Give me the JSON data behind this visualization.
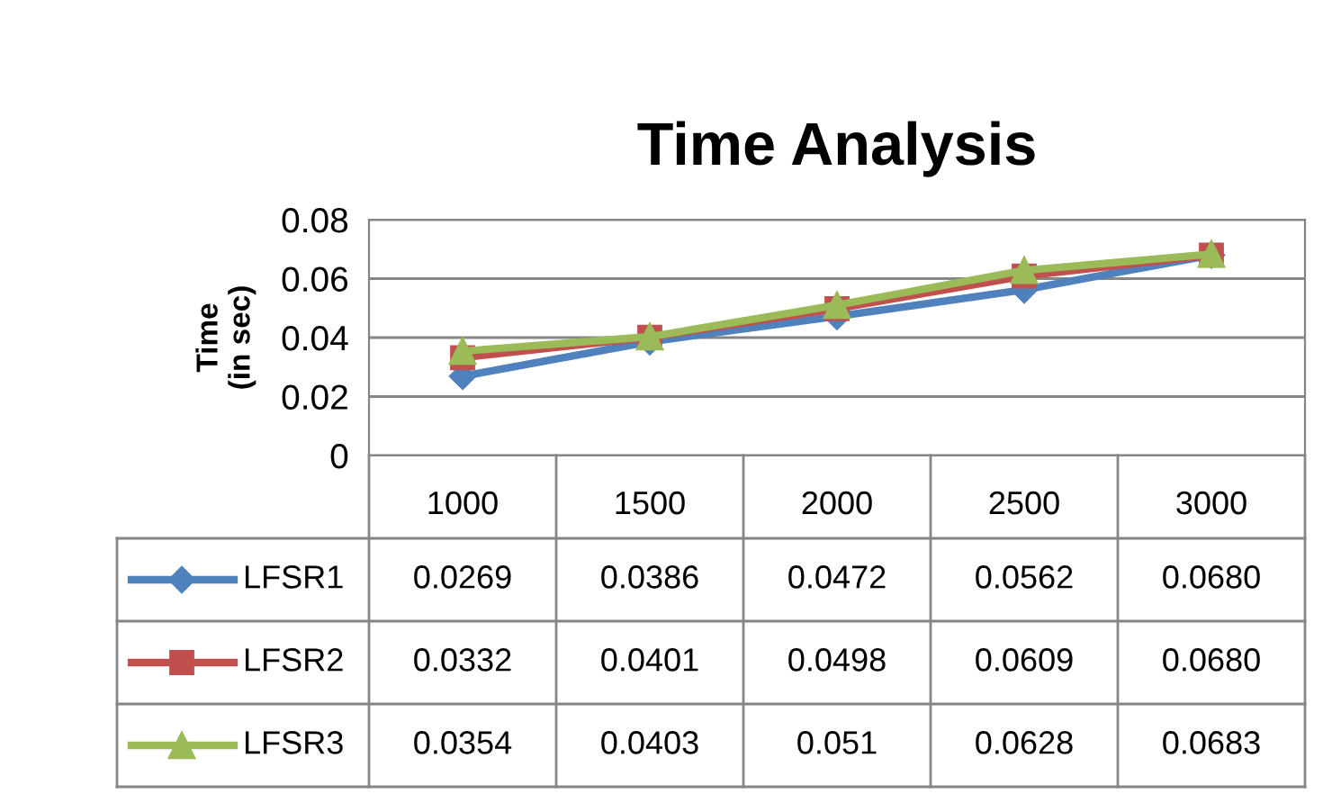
{
  "chart_data": {
    "type": "line",
    "title": "Time Analysis",
    "ylabel": "Time\n(in sec)",
    "categories": [
      "1000",
      "1500",
      "2000",
      "2500",
      "3000"
    ],
    "series": [
      {
        "name": "LFSR1",
        "color": "#4f81bd",
        "marker": "diamond",
        "values": [
          0.0269,
          0.0386,
          0.0472,
          0.0562,
          0.068
        ],
        "value_labels": [
          "0.0269",
          "0.0386",
          "0.0472",
          "0.0562",
          "0.0680"
        ]
      },
      {
        "name": "LFSR2",
        "color": "#c0504d",
        "marker": "square",
        "values": [
          0.0332,
          0.0401,
          0.0498,
          0.0609,
          0.068
        ],
        "value_labels": [
          "0.0332",
          "0.0401",
          "0.0498",
          "0.0609",
          "0.0680"
        ]
      },
      {
        "name": "LFSR3",
        "color": "#9bbb59",
        "marker": "triangle",
        "values": [
          0.0354,
          0.0403,
          0.051,
          0.0628,
          0.0683
        ],
        "value_labels": [
          "0.0354",
          "0.0403",
          "0.051",
          "0.0628",
          "0.0683"
        ]
      }
    ],
    "ylim": [
      0,
      0.08
    ],
    "yticks": [
      0,
      0.02,
      0.04,
      0.06,
      0.08
    ],
    "grid": "y",
    "legend": "bottom",
    "line_style": "solid"
  }
}
